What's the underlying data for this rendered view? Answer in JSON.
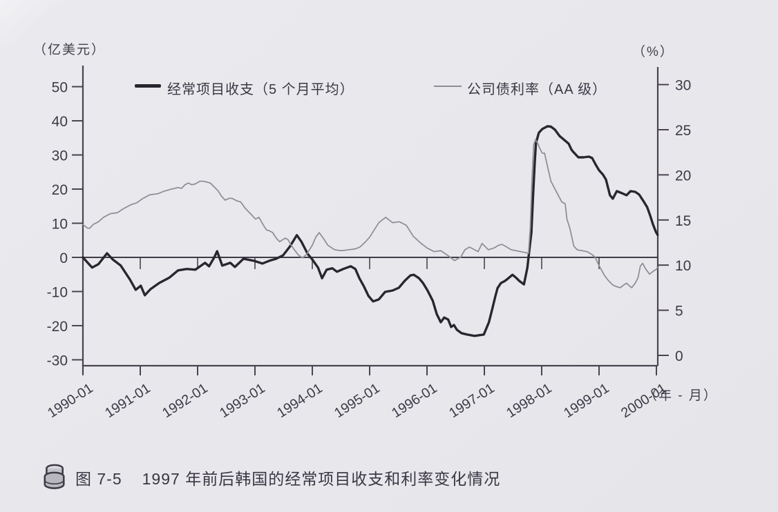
{
  "figure": {
    "left_axis_unit": "（亿美元）",
    "right_axis_unit": "（%）",
    "x_axis_unit": "（年 - 月）",
    "legend": [
      {
        "label": "经常项目收支（5 个月平均）",
        "style": "thick-dark"
      },
      {
        "label": "公司债利率（AA 级）",
        "style": "thin-gray"
      }
    ],
    "caption": {
      "icon": "coin-stack-icon",
      "figure_number": "图 7-5",
      "title": "1997 年前后韩国的经常项目收支和利率变化情况"
    }
  },
  "chart_data": {
    "type": "line",
    "title": "1997 年前后韩国的经常项目收支和利率变化情况",
    "x_tick_labels": [
      "1990-01",
      "1991-01",
      "1992-01",
      "1993-01",
      "1994-01",
      "1995-01",
      "1996-01",
      "1997-01",
      "1998-01",
      "1999-01",
      "2000-01"
    ],
    "x_range": [
      1990,
      2000.08
    ],
    "left_axis": {
      "unit": "亿美元",
      "ticks": [
        50,
        40,
        30,
        20,
        10,
        0,
        -10,
        -20,
        -30
      ],
      "range": [
        -30,
        50
      ]
    },
    "right_axis": {
      "unit": "%",
      "ticks": [
        30,
        25,
        20,
        15,
        10,
        5,
        0
      ],
      "range": [
        0,
        30
      ]
    },
    "grid": false,
    "legend_position": "top",
    "colors": {
      "current_account": "#29262f",
      "bond_rate": "#8f8f97",
      "axis": "#49434f"
    },
    "series": [
      {
        "name": "经常项目收支（5 个月平均）",
        "axis": "left",
        "color": "#29262f",
        "width": 3.4,
        "points": [
          [
            1990.0,
            0
          ],
          [
            1990.16,
            -3
          ],
          [
            1990.27,
            -2
          ],
          [
            1990.42,
            1.2
          ],
          [
            1990.52,
            -0.6
          ],
          [
            1990.66,
            -2.4
          ],
          [
            1990.82,
            -6.5
          ],
          [
            1990.92,
            -9.5
          ],
          [
            1991.01,
            -8.3
          ],
          [
            1991.08,
            -11.1
          ],
          [
            1991.18,
            -9.3
          ],
          [
            1991.33,
            -7.5
          ],
          [
            1991.51,
            -5.9
          ],
          [
            1991.66,
            -3.8
          ],
          [
            1991.81,
            -3.4
          ],
          [
            1991.96,
            -3.6
          ],
          [
            1992.13,
            -1.6
          ],
          [
            1992.2,
            -2.6
          ],
          [
            1992.29,
            0
          ],
          [
            1992.34,
            1.8
          ],
          [
            1992.43,
            -2.4
          ],
          [
            1992.57,
            -1.6
          ],
          [
            1992.65,
            -2.8
          ],
          [
            1992.8,
            -0.4
          ],
          [
            1992.98,
            -1.0
          ],
          [
            1993.13,
            -1.8
          ],
          [
            1993.25,
            -1.0
          ],
          [
            1993.37,
            -0.4
          ],
          [
            1993.49,
            0.6
          ],
          [
            1993.61,
            3.2
          ],
          [
            1993.73,
            6.5
          ],
          [
            1993.81,
            4.6
          ],
          [
            1993.92,
            1.0
          ],
          [
            1994.0,
            -0.6
          ],
          [
            1994.1,
            -3.0
          ],
          [
            1994.17,
            -6.1
          ],
          [
            1994.25,
            -3.6
          ],
          [
            1994.35,
            -3.2
          ],
          [
            1994.43,
            -4.2
          ],
          [
            1994.54,
            -3.4
          ],
          [
            1994.67,
            -2.6
          ],
          [
            1994.75,
            -3.4
          ],
          [
            1994.82,
            -6.1
          ],
          [
            1994.9,
            -8.5
          ],
          [
            1994.98,
            -11.3
          ],
          [
            1995.06,
            -12.9
          ],
          [
            1995.16,
            -12.3
          ],
          [
            1995.27,
            -10.1
          ],
          [
            1995.4,
            -9.7
          ],
          [
            1995.51,
            -8.9
          ],
          [
            1995.61,
            -6.9
          ],
          [
            1995.71,
            -5.3
          ],
          [
            1995.77,
            -5.1
          ],
          [
            1995.86,
            -6.1
          ],
          [
            1995.93,
            -7.5
          ],
          [
            1996.01,
            -9.7
          ],
          [
            1996.1,
            -12.7
          ],
          [
            1996.17,
            -16.6
          ],
          [
            1996.24,
            -19.0
          ],
          [
            1996.3,
            -17.6
          ],
          [
            1996.37,
            -18.2
          ],
          [
            1996.42,
            -20.4
          ],
          [
            1996.47,
            -19.8
          ],
          [
            1996.52,
            -21.2
          ],
          [
            1996.6,
            -22.2
          ],
          [
            1996.7,
            -22.6
          ],
          [
            1996.83,
            -23.0
          ],
          [
            1996.99,
            -22.6
          ],
          [
            1997.08,
            -19.0
          ],
          [
            1997.14,
            -15.0
          ],
          [
            1997.19,
            -11.5
          ],
          [
            1997.23,
            -9.0
          ],
          [
            1997.29,
            -7.5
          ],
          [
            1997.35,
            -7.0
          ],
          [
            1997.39,
            -6.5
          ],
          [
            1997.49,
            -5.1
          ],
          [
            1997.55,
            -5.9
          ],
          [
            1997.61,
            -6.9
          ],
          [
            1997.69,
            -7.9
          ],
          [
            1997.75,
            -3.0
          ],
          [
            1997.78,
            1.4
          ],
          [
            1997.82,
            7.3
          ],
          [
            1997.85,
            18.0
          ],
          [
            1997.88,
            28.0
          ],
          [
            1997.9,
            33.5
          ],
          [
            1997.95,
            36.5
          ],
          [
            1998.01,
            37.6
          ],
          [
            1998.1,
            38.4
          ],
          [
            1998.16,
            38.3
          ],
          [
            1998.23,
            37.4
          ],
          [
            1998.31,
            35.6
          ],
          [
            1998.47,
            33.3
          ],
          [
            1998.52,
            31.5
          ],
          [
            1998.55,
            30.9
          ],
          [
            1998.64,
            29.3
          ],
          [
            1998.73,
            29.3
          ],
          [
            1998.82,
            29.5
          ],
          [
            1998.88,
            29.1
          ],
          [
            1998.95,
            26.9
          ],
          [
            1999.0,
            25.5
          ],
          [
            1999.07,
            24.2
          ],
          [
            1999.12,
            22.8
          ],
          [
            1999.19,
            18.2
          ],
          [
            1999.24,
            17.2
          ],
          [
            1999.31,
            19.4
          ],
          [
            1999.4,
            18.8
          ],
          [
            1999.48,
            18.2
          ],
          [
            1999.55,
            19.4
          ],
          [
            1999.63,
            19.2
          ],
          [
            1999.7,
            18.4
          ],
          [
            1999.77,
            16.6
          ],
          [
            1999.84,
            14.7
          ],
          [
            1999.89,
            12.3
          ],
          [
            1999.94,
            9.7
          ],
          [
            1999.99,
            7.5
          ],
          [
            2000.02,
            6.6
          ]
        ]
      },
      {
        "name": "公司债利率（AA 级）",
        "axis": "right",
        "color": "#8f8f97",
        "width": 1.8,
        "points": [
          [
            1990.0,
            14.5
          ],
          [
            1990.08,
            14.1
          ],
          [
            1990.12,
            14.1
          ],
          [
            1990.18,
            14.5
          ],
          [
            1990.27,
            14.8
          ],
          [
            1990.36,
            15.3
          ],
          [
            1990.48,
            15.7
          ],
          [
            1990.6,
            15.8
          ],
          [
            1990.72,
            16.3
          ],
          [
            1990.84,
            16.7
          ],
          [
            1990.94,
            16.9
          ],
          [
            1991.05,
            17.4
          ],
          [
            1991.17,
            17.8
          ],
          [
            1991.3,
            17.9
          ],
          [
            1991.42,
            18.2
          ],
          [
            1991.48,
            18.3
          ],
          [
            1991.53,
            18.4
          ],
          [
            1991.6,
            18.5
          ],
          [
            1991.66,
            18.6
          ],
          [
            1991.72,
            18.5
          ],
          [
            1991.78,
            18.9
          ],
          [
            1991.84,
            19.1
          ],
          [
            1991.9,
            18.9
          ],
          [
            1991.96,
            19.0
          ],
          [
            1992.04,
            19.3
          ],
          [
            1992.1,
            19.3
          ],
          [
            1992.16,
            19.2
          ],
          [
            1992.22,
            19.1
          ],
          [
            1992.3,
            18.6
          ],
          [
            1992.36,
            18.2
          ],
          [
            1992.42,
            17.6
          ],
          [
            1992.48,
            17.2
          ],
          [
            1992.55,
            17.4
          ],
          [
            1992.6,
            17.4
          ],
          [
            1992.69,
            17.1
          ],
          [
            1992.75,
            17.0
          ],
          [
            1992.83,
            16.3
          ],
          [
            1992.95,
            15.5
          ],
          [
            1993.01,
            15.1
          ],
          [
            1993.07,
            15.3
          ],
          [
            1993.14,
            14.5
          ],
          [
            1993.2,
            13.9
          ],
          [
            1993.25,
            13.8
          ],
          [
            1993.31,
            13.6
          ],
          [
            1993.37,
            13.0
          ],
          [
            1993.43,
            12.6
          ],
          [
            1993.48,
            12.8
          ],
          [
            1993.53,
            13.0
          ],
          [
            1993.58,
            12.8
          ],
          [
            1993.64,
            12.1
          ],
          [
            1993.7,
            11.6
          ],
          [
            1993.76,
            11.1
          ],
          [
            1993.83,
            10.8
          ],
          [
            1993.9,
            11.2
          ],
          [
            1993.95,
            11.7
          ],
          [
            1994.0,
            12.2
          ],
          [
            1994.06,
            13.1
          ],
          [
            1994.12,
            13.6
          ],
          [
            1994.19,
            13.0
          ],
          [
            1994.27,
            12.2
          ],
          [
            1994.39,
            11.7
          ],
          [
            1994.51,
            11.6
          ],
          [
            1994.63,
            11.7
          ],
          [
            1994.75,
            11.8
          ],
          [
            1994.83,
            12.0
          ],
          [
            1994.93,
            12.6
          ],
          [
            1995.0,
            13.1
          ],
          [
            1995.08,
            13.9
          ],
          [
            1995.16,
            14.7
          ],
          [
            1995.28,
            15.3
          ],
          [
            1995.4,
            14.7
          ],
          [
            1995.52,
            14.8
          ],
          [
            1995.64,
            14.4
          ],
          [
            1995.76,
            13.2
          ],
          [
            1995.88,
            12.5
          ],
          [
            1996.0,
            11.9
          ],
          [
            1996.12,
            11.5
          ],
          [
            1996.24,
            11.6
          ],
          [
            1996.4,
            10.9
          ],
          [
            1996.48,
            10.5
          ],
          [
            1996.59,
            10.9
          ],
          [
            1996.66,
            11.7
          ],
          [
            1996.74,
            12.0
          ],
          [
            1996.83,
            11.7
          ],
          [
            1996.89,
            11.5
          ],
          [
            1996.96,
            12.4
          ],
          [
            1997.07,
            11.7
          ],
          [
            1997.17,
            11.9
          ],
          [
            1997.25,
            12.2
          ],
          [
            1997.31,
            12.3
          ],
          [
            1997.39,
            12.0
          ],
          [
            1997.47,
            11.7
          ],
          [
            1997.55,
            11.6
          ],
          [
            1997.63,
            11.5
          ],
          [
            1997.71,
            11.4
          ],
          [
            1997.77,
            11.3
          ],
          [
            1997.8,
            14.1
          ],
          [
            1997.83,
            19.5
          ],
          [
            1997.86,
            23.3
          ],
          [
            1997.89,
            23.9
          ],
          [
            1997.93,
            23.5
          ],
          [
            1997.97,
            22.9
          ],
          [
            1998.01,
            22.4
          ],
          [
            1998.05,
            22.4
          ],
          [
            1998.16,
            19.3
          ],
          [
            1998.25,
            18.2
          ],
          [
            1998.35,
            17.0
          ],
          [
            1998.41,
            16.8
          ],
          [
            1998.44,
            15.1
          ],
          [
            1998.49,
            14.1
          ],
          [
            1998.56,
            12.1
          ],
          [
            1998.62,
            11.7
          ],
          [
            1998.7,
            11.6
          ],
          [
            1998.79,
            11.5
          ],
          [
            1998.87,
            11.2
          ],
          [
            1998.93,
            10.9
          ],
          [
            1998.98,
            10.2
          ],
          [
            1999.03,
            9.6
          ],
          [
            1999.09,
            8.9
          ],
          [
            1999.16,
            8.3
          ],
          [
            1999.24,
            7.8
          ],
          [
            1999.31,
            7.6
          ],
          [
            1999.37,
            7.5
          ],
          [
            1999.43,
            7.8
          ],
          [
            1999.48,
            8.0
          ],
          [
            1999.53,
            7.7
          ],
          [
            1999.57,
            7.5
          ],
          [
            1999.63,
            8.0
          ],
          [
            1999.68,
            8.6
          ],
          [
            1999.72,
            9.9
          ],
          [
            1999.76,
            10.2
          ],
          [
            1999.81,
            9.6
          ],
          [
            1999.88,
            9.0
          ],
          [
            1999.94,
            9.3
          ],
          [
            1999.99,
            9.5
          ],
          [
            2000.02,
            9.7
          ]
        ]
      }
    ]
  }
}
